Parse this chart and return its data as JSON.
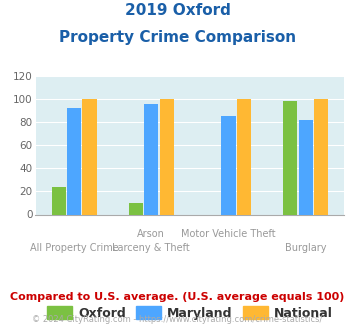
{
  "title_line1": "2019 Oxford",
  "title_line2": "Property Crime Comparison",
  "cat_labels_top": [
    "",
    "Arson",
    "Motor Vehicle Theft",
    ""
  ],
  "cat_labels_bottom": [
    "All Property Crime",
    "Larceny & Theft",
    "",
    "Burglary"
  ],
  "oxford": [
    24,
    10,
    0,
    98
  ],
  "maryland": [
    92,
    96,
    85,
    82
  ],
  "national": [
    100,
    100,
    100,
    100
  ],
  "oxford_color": "#7bc142",
  "maryland_color": "#4da6ff",
  "national_color": "#ffb833",
  "ylim": [
    0,
    120
  ],
  "yticks": [
    0,
    20,
    40,
    60,
    80,
    100,
    120
  ],
  "chart_bg": "#ddeef2",
  "fig_bg": "#ffffff",
  "title_color": "#1a5fa8",
  "label_color": "#999999",
  "footer_text": "Compared to U.S. average. (U.S. average equals 100)",
  "copyright_text": "© 2024 CityRating.com - https://www.cityrating.com/crime-statistics/",
  "footer_color": "#cc0000",
  "copyright_color": "#aaaaaa",
  "legend_labels": [
    "Oxford",
    "Maryland",
    "National"
  ],
  "bar_width": 0.2,
  "group_positions": [
    0,
    1,
    2,
    3
  ]
}
